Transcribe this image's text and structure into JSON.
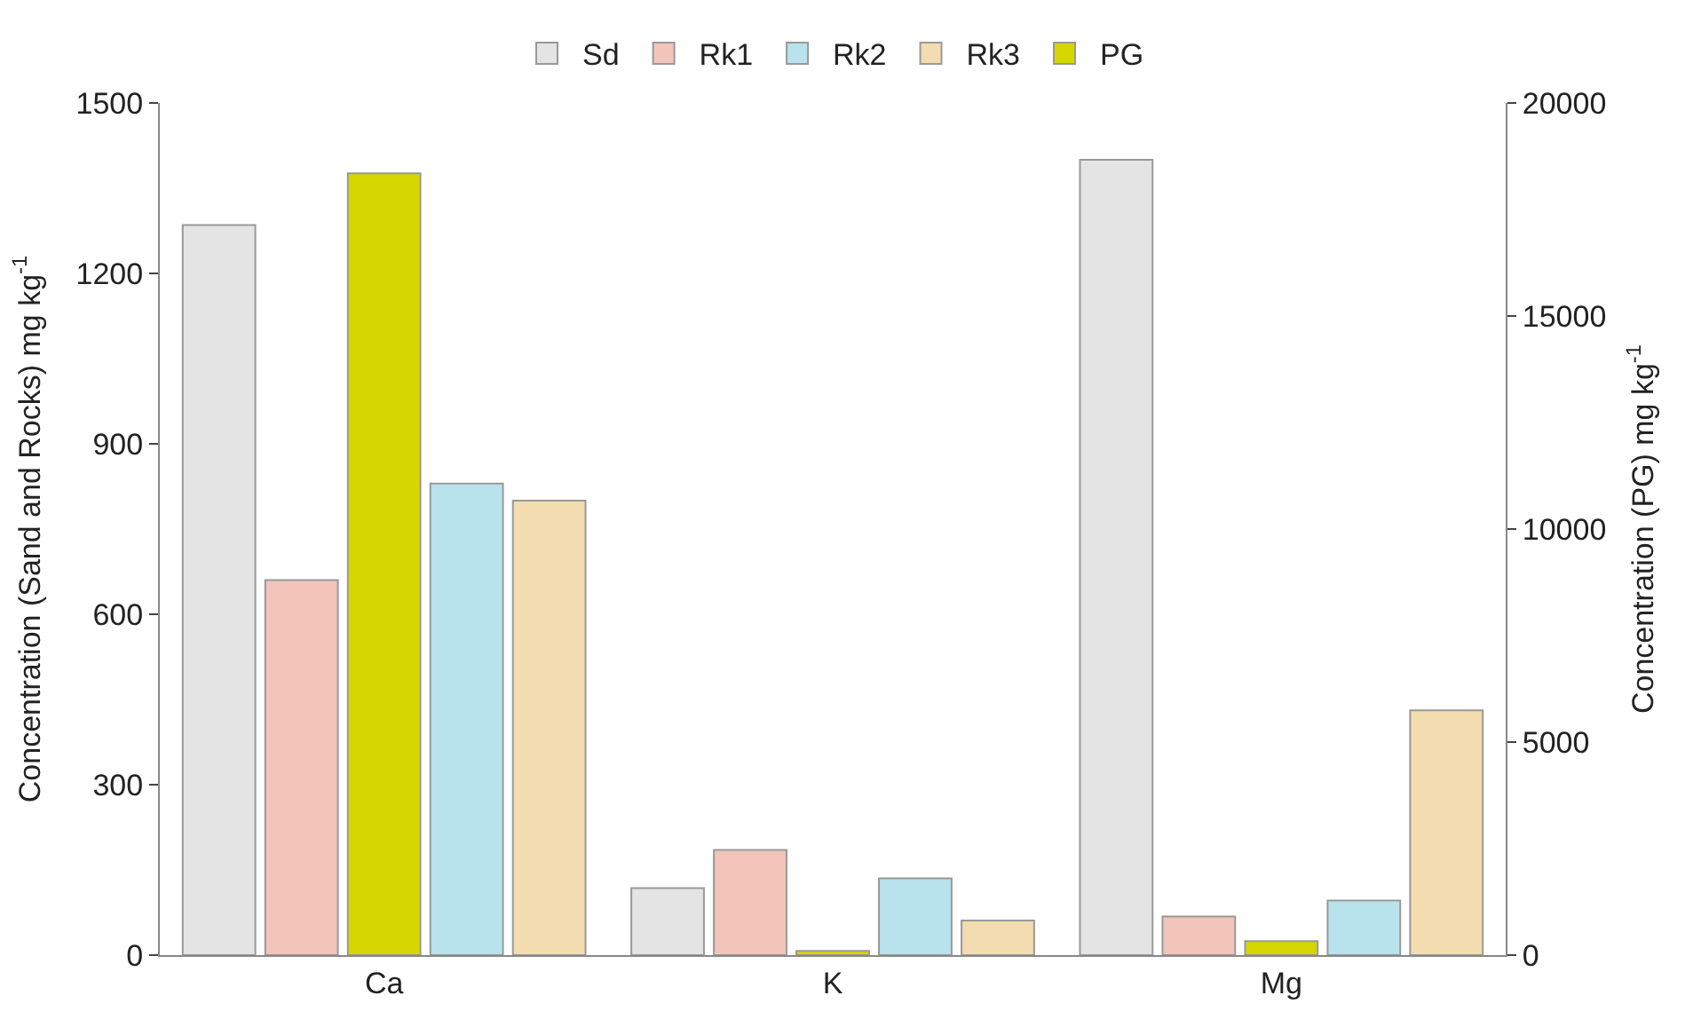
{
  "chart_data": {
    "type": "bar",
    "categories": [
      "Ca",
      "K",
      "Mg"
    ],
    "ylabel": "Concentration (Sand and Rocks) mg kg$^{-1}$",
    "y2label": "Concentration (PG) mg kg$^{-1}$",
    "ylim": [
      0,
      1500
    ],
    "yticks": [
      0,
      300,
      600,
      900,
      1200,
      1500
    ],
    "y2lim": [
      0,
      20000
    ],
    "y2ticks": [
      0,
      5000,
      10000,
      15000,
      20000
    ],
    "legend": "top",
    "series": [
      {
        "name": "Sd",
        "color": "#e4e4e4",
        "values": [
          1285,
          118,
          1400
        ]
      },
      {
        "name": "Rk1",
        "color": "#f2c4ba",
        "values": [
          660,
          185,
          68
        ]
      },
      {
        "name": "PG",
        "color": "#d6d600",
        "axis": "y2",
        "values": [
          18350,
          100,
          330
        ]
      },
      {
        "name": "Rk2",
        "color": "#b8e2ec",
        "values": [
          830,
          135,
          96
        ]
      },
      {
        "name": "Rk3",
        "color": "#f2dcb0",
        "values": [
          800,
          61,
          431
        ]
      }
    ]
  }
}
